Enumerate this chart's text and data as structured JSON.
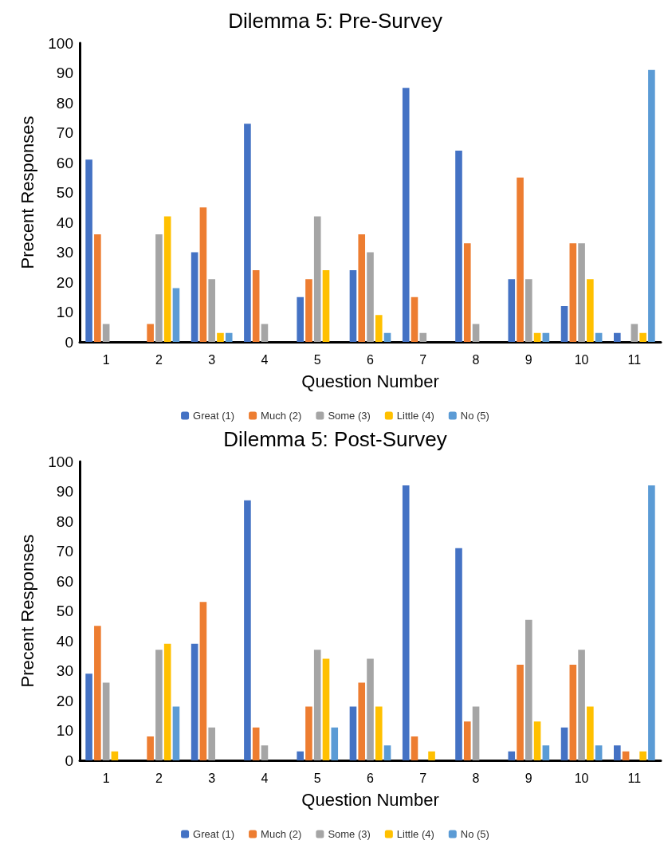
{
  "chart_data": [
    {
      "type": "bar",
      "title": "Dilemma 5: Pre-Survey",
      "xlabel": "Question Number",
      "ylabel": "Precent Responses",
      "categories": [
        "1",
        "2",
        "3",
        "4",
        "5",
        "6",
        "7",
        "8",
        "9",
        "10",
        "11"
      ],
      "ylim": [
        0,
        100
      ],
      "yticks": [
        0,
        10,
        20,
        30,
        40,
        50,
        60,
        70,
        80,
        90,
        100
      ],
      "grid": false,
      "legend": "bottom",
      "series": [
        {
          "name": "Great (1)",
          "color": "#4472c4",
          "values": [
            61,
            0,
            30,
            73,
            15,
            24,
            85,
            64,
            21,
            12,
            3
          ]
        },
        {
          "name": "Much (2)",
          "color": "#ed7d31",
          "values": [
            36,
            6,
            45,
            24,
            21,
            36,
            15,
            33,
            55,
            33,
            0
          ]
        },
        {
          "name": "Some (3)",
          "color": "#a5a5a5",
          "values": [
            6,
            36,
            21,
            6,
            42,
            30,
            3,
            6,
            21,
            33,
            6
          ]
        },
        {
          "name": "Little (4)",
          "color": "#ffc000",
          "values": [
            0,
            42,
            3,
            0,
            24,
            9,
            0,
            0,
            3,
            21,
            3
          ]
        },
        {
          "name": "No (5)",
          "color": "#5b9bd5",
          "values": [
            0,
            18,
            3,
            0,
            0,
            3,
            0,
            0,
            3,
            3,
            91
          ]
        }
      ]
    },
    {
      "type": "bar",
      "title": "Dilemma 5: Post-Survey",
      "xlabel": "Question Number",
      "ylabel": "Precent Responses",
      "categories": [
        "1",
        "2",
        "3",
        "4",
        "5",
        "6",
        "7",
        "8",
        "9",
        "10",
        "11"
      ],
      "ylim": [
        0,
        100
      ],
      "yticks": [
        0,
        10,
        20,
        30,
        40,
        50,
        60,
        70,
        80,
        90,
        100
      ],
      "grid": false,
      "legend": "bottom",
      "series": [
        {
          "name": "Great (1)",
          "color": "#4472c4",
          "values": [
            29,
            0,
            39,
            87,
            3,
            18,
            92,
            71,
            3,
            11,
            5
          ]
        },
        {
          "name": "Much (2)",
          "color": "#ed7d31",
          "values": [
            45,
            8,
            53,
            11,
            18,
            26,
            8,
            13,
            32,
            32,
            3
          ]
        },
        {
          "name": "Some (3)",
          "color": "#a5a5a5",
          "values": [
            26,
            37,
            11,
            5,
            37,
            34,
            0,
            18,
            47,
            37,
            0
          ]
        },
        {
          "name": "Little (4)",
          "color": "#ffc000",
          "values": [
            3,
            39,
            0,
            0,
            34,
            18,
            3,
            0,
            13,
            18,
            3
          ]
        },
        {
          "name": "No (5)",
          "color": "#5b9bd5",
          "values": [
            0,
            18,
            0,
            0,
            11,
            5,
            0,
            0,
            5,
            5,
            92
          ]
        }
      ]
    }
  ]
}
